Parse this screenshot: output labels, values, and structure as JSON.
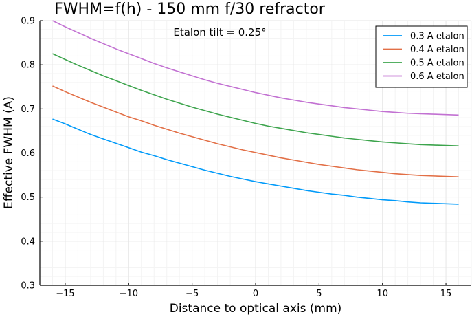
{
  "chart_data": {
    "type": "line",
    "title": "FWHM=f(h) - 150 mm f/30 refractor",
    "annotation": "Etalon tilt = 0.25°",
    "xlabel": "Distance to optical axis (mm)",
    "ylabel": "Effective FWHM (A)",
    "xlim": [
      -17,
      17
    ],
    "ylim": [
      0.3,
      0.9
    ],
    "x_ticks": [
      -15,
      -10,
      -5,
      0,
      5,
      10,
      15
    ],
    "x_tick_labels": [
      "−15",
      "−10",
      "−5",
      "0",
      "5",
      "10",
      "15"
    ],
    "y_ticks": [
      0.3,
      0.4,
      0.5,
      0.6,
      0.7,
      0.8,
      0.9
    ],
    "y_tick_labels": [
      "0.3",
      "0.4",
      "0.5",
      "0.6",
      "0.7",
      "0.8",
      "0.9"
    ],
    "grid": true,
    "minor_grid": true,
    "legend_position": "top-right",
    "x": [
      -16,
      -15,
      -14,
      -13,
      -12,
      -11,
      -10,
      -9,
      -8,
      -7,
      -6,
      -5,
      -4,
      -3,
      -2,
      -1,
      0,
      1,
      2,
      3,
      4,
      5,
      6,
      7,
      8,
      9,
      10,
      11,
      12,
      13,
      14,
      15,
      16
    ],
    "series": [
      {
        "name": "0.3 A etalon",
        "color": "#009af9",
        "values": [
          0.677,
          0.666,
          0.654,
          0.642,
          0.632,
          0.622,
          0.612,
          0.602,
          0.594,
          0.585,
          0.577,
          0.569,
          0.561,
          0.554,
          0.547,
          0.541,
          0.535,
          0.53,
          0.525,
          0.52,
          0.515,
          0.511,
          0.507,
          0.504,
          0.5,
          0.497,
          0.494,
          0.492,
          0.489,
          0.487,
          0.486,
          0.485,
          0.484
        ]
      },
      {
        "name": "0.4 A etalon",
        "color": "#e26f46",
        "values": [
          0.752,
          0.739,
          0.727,
          0.715,
          0.704,
          0.693,
          0.682,
          0.673,
          0.663,
          0.654,
          0.645,
          0.637,
          0.629,
          0.621,
          0.614,
          0.607,
          0.601,
          0.595,
          0.589,
          0.584,
          0.579,
          0.574,
          0.57,
          0.566,
          0.562,
          0.559,
          0.556,
          0.553,
          0.551,
          0.549,
          0.548,
          0.547,
          0.546
        ]
      },
      {
        "name": "0.5 A etalon",
        "color": "#3da44d",
        "values": [
          0.825,
          0.812,
          0.799,
          0.787,
          0.775,
          0.764,
          0.753,
          0.742,
          0.732,
          0.722,
          0.713,
          0.704,
          0.696,
          0.688,
          0.681,
          0.674,
          0.667,
          0.661,
          0.656,
          0.651,
          0.646,
          0.642,
          0.638,
          0.634,
          0.631,
          0.628,
          0.625,
          0.623,
          0.621,
          0.619,
          0.618,
          0.617,
          0.616
        ]
      },
      {
        "name": "0.6 A etalon",
        "color": "#c271d2",
        "values": [
          0.9,
          0.886,
          0.873,
          0.86,
          0.848,
          0.836,
          0.825,
          0.814,
          0.803,
          0.793,
          0.784,
          0.775,
          0.766,
          0.758,
          0.751,
          0.744,
          0.737,
          0.731,
          0.725,
          0.72,
          0.715,
          0.711,
          0.707,
          0.703,
          0.7,
          0.697,
          0.694,
          0.692,
          0.69,
          0.689,
          0.688,
          0.687,
          0.686
        ]
      }
    ]
  }
}
